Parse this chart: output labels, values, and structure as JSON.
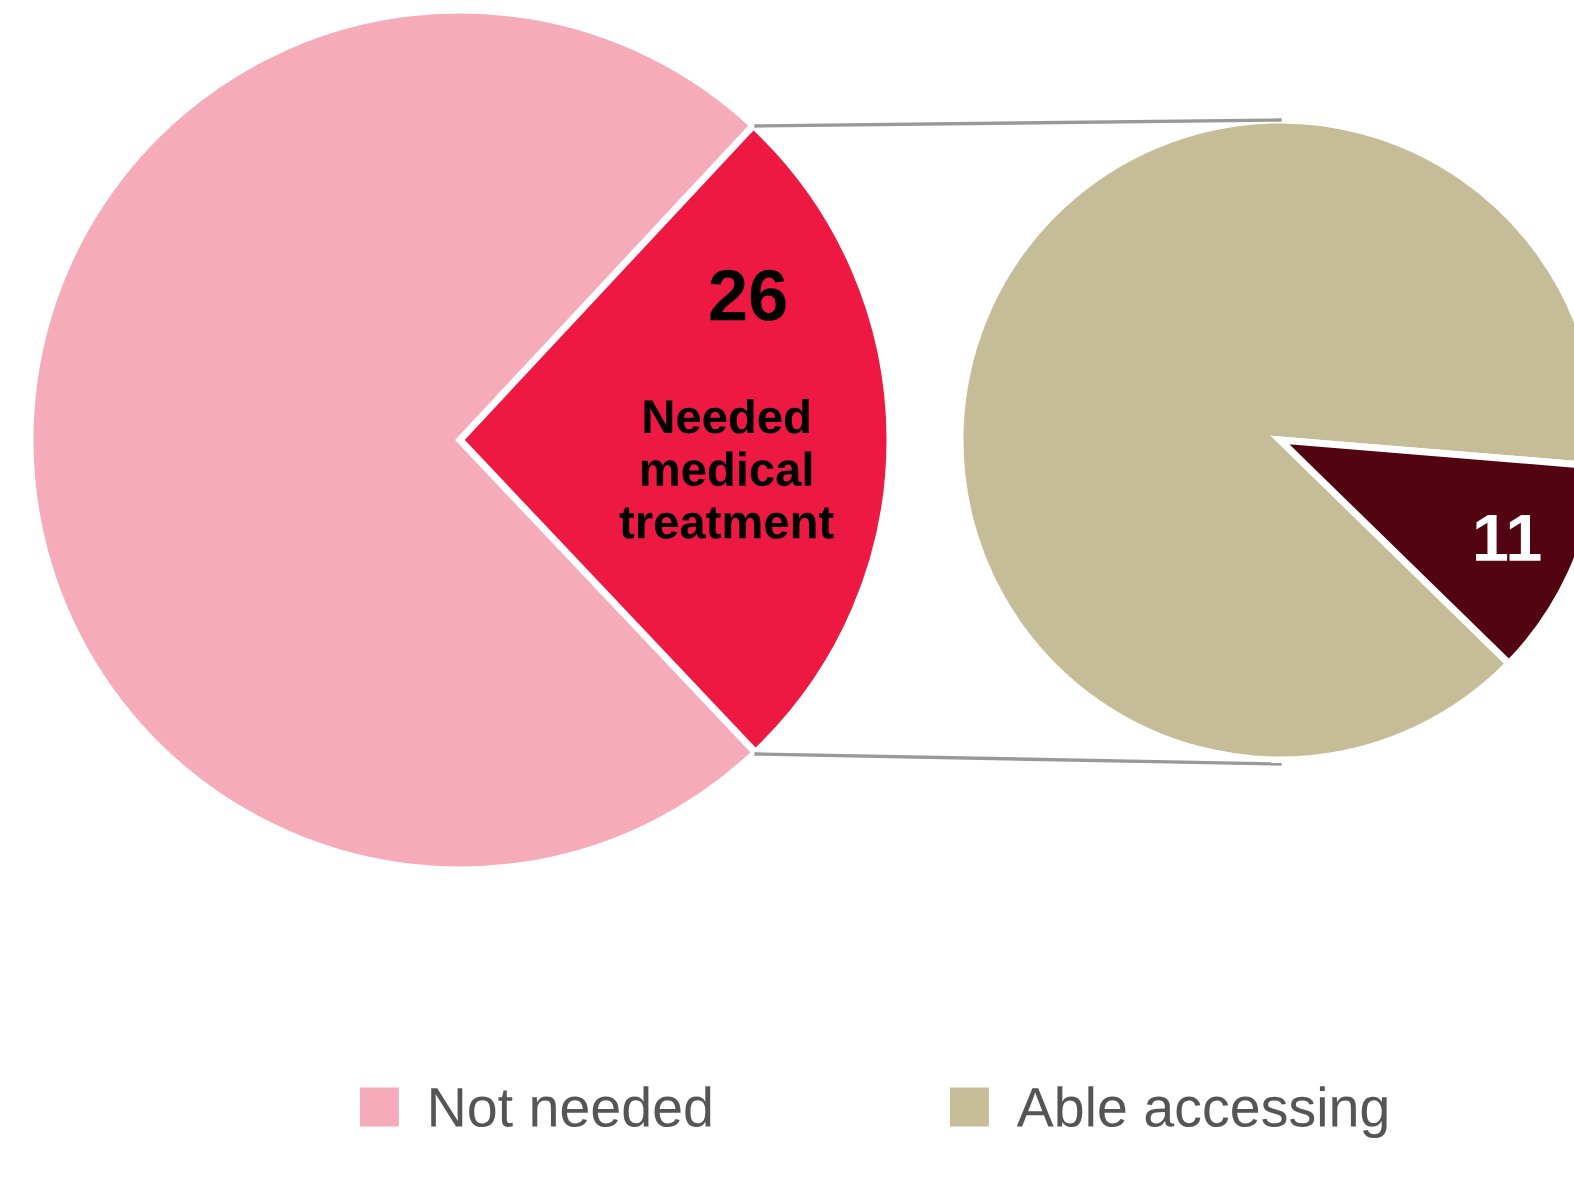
{
  "chart_data": [
    {
      "type": "pie",
      "categories": [
        "Not needed",
        "Needed medical treatment"
      ],
      "values": [
        74,
        26
      ],
      "colors": [
        "#f6abbb",
        "#ee1942"
      ],
      "value_labels": [
        null,
        "26"
      ],
      "legend": "bottom"
    },
    {
      "type": "pie",
      "categories": [
        "Able accessing",
        null
      ],
      "values": [
        89,
        11
      ],
      "colors": [
        "#c5bd98",
        "#520412"
      ],
      "value_labels": [
        null,
        "11"
      ],
      "legend": "bottom"
    }
  ]
}
